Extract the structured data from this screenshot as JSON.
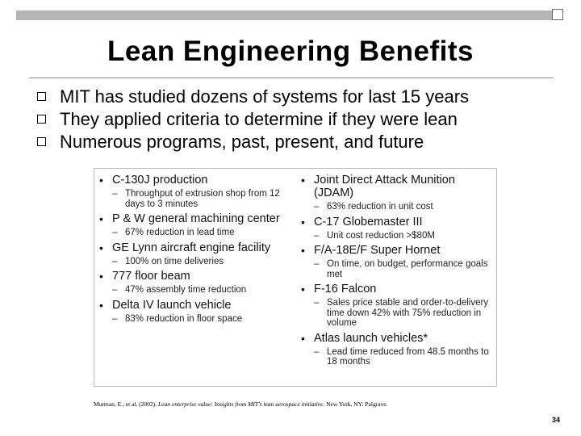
{
  "title": "Lean Engineering Benefits",
  "bullets": [
    "MIT has studied dozens of systems for last 15 years",
    "They applied criteria to determine if they were lean",
    "Numerous programs, past, present, and future"
  ],
  "panel": {
    "left": [
      {
        "name": "C-130J production",
        "sub": "Throughput of extrusion shop from 12 days to 3 minutes"
      },
      {
        "name": "P & W general machining center",
        "sub": "67% reduction in lead time"
      },
      {
        "name": "GE Lynn aircraft engine facility",
        "sub": "100% on time deliveries"
      },
      {
        "name": "777 floor beam",
        "sub": "47% assembly time reduction"
      },
      {
        "name": "Delta IV launch vehicle",
        "sub": "83% reduction in floor space"
      }
    ],
    "right": [
      {
        "name": "Joint Direct Attack Munition (JDAM)",
        "sub": "63% reduction in unit cost"
      },
      {
        "name": "C-17 Globemaster III",
        "sub": "Unit cost reduction >$80M"
      },
      {
        "name": "F/A-18E/F Super Hornet",
        "sub": "On time, on budget, performance goals met"
      },
      {
        "name": "F-16 Falcon",
        "sub": "Sales price stable and order-to-delivery time down 42% with 75% reduction in volume"
      },
      {
        "name": "Atlas launch vehicles*",
        "sub": "Lead time reduced from 48.5 months to 18 months"
      }
    ]
  },
  "citation": {
    "prefix": "Murman, E., et al. (2002).",
    "italic": "Lean enterprise value: Insights from MIT's lean aerospace initiative.",
    "suffix": "New York, NY: Palgrave."
  },
  "page_number": "34"
}
